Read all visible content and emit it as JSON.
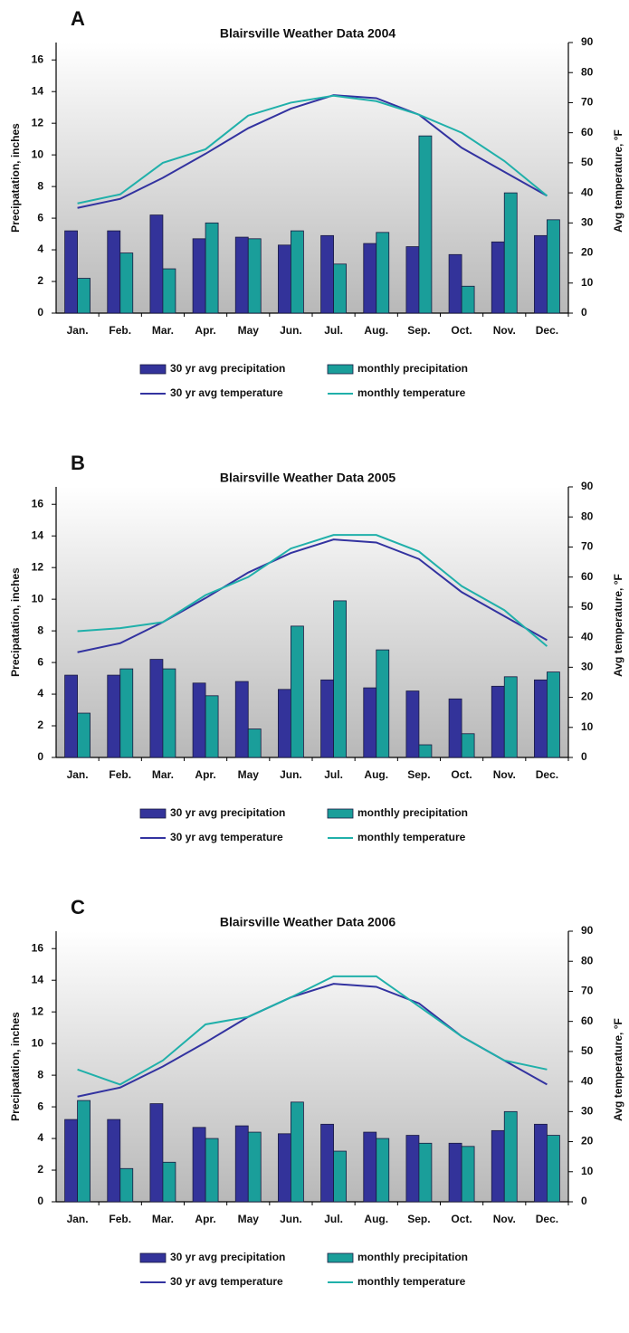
{
  "chart_data": [
    {
      "type": "bar",
      "panel_label": "A",
      "title": "Blairsville Weather Data 2004",
      "ylabel": "Precipatation, inches",
      "y2label": "Avg temperature, °F",
      "categories": [
        "Jan.",
        "Feb.",
        "Mar.",
        "Apr.",
        "May",
        "Jun.",
        "Jul.",
        "Aug.",
        "Sep.",
        "Oct.",
        "Nov.",
        "Dec."
      ],
      "ylim": [
        0,
        17.1
      ],
      "yticks": [
        0,
        2,
        4,
        6,
        8,
        10,
        12,
        14,
        16
      ],
      "y2lim": [
        0,
        90
      ],
      "y2ticks": [
        0,
        10,
        20,
        30,
        40,
        50,
        60,
        70,
        80,
        90
      ],
      "series": [
        {
          "name": "30 yr avg precipitation",
          "type": "bar",
          "color": "#33339a",
          "values": [
            5.2,
            5.2,
            6.2,
            4.7,
            4.8,
            4.3,
            4.9,
            4.4,
            4.2,
            3.7,
            4.5,
            4.9
          ]
        },
        {
          "name": "monthly precipitation",
          "type": "bar",
          "color": "#1a9e9a",
          "values": [
            2.2,
            3.8,
            2.8,
            5.7,
            4.7,
            5.2,
            3.1,
            5.1,
            11.2,
            1.7,
            7.6,
            5.9
          ]
        },
        {
          "name": "30 yr avg temperature",
          "type": "line",
          "axis": "y2",
          "color": "#3333a0",
          "values": [
            35,
            38,
            45,
            53,
            61.5,
            68,
            72.5,
            71.5,
            66,
            55,
            47,
            39
          ]
        },
        {
          "name": "monthly temperature",
          "type": "line",
          "axis": "y2",
          "color": "#20b0aa",
          "values": [
            36.5,
            39.5,
            50,
            54.5,
            65.7,
            70,
            72.3,
            70.5,
            66,
            60,
            50.6,
            39
          ]
        }
      ]
    },
    {
      "type": "bar",
      "panel_label": "B",
      "title": "Blairsville Weather Data 2005",
      "ylabel": "Precipatation, inches",
      "y2label": "Avg temperature, °F",
      "categories": [
        "Jan.",
        "Feb.",
        "Mar.",
        "Apr.",
        "May",
        "Jun.",
        "Jul.",
        "Aug.",
        "Sep.",
        "Oct.",
        "Nov.",
        "Dec."
      ],
      "ylim": [
        0,
        17.1
      ],
      "yticks": [
        0,
        2,
        4,
        6,
        8,
        10,
        12,
        14,
        16
      ],
      "y2lim": [
        0,
        90
      ],
      "y2ticks": [
        0,
        10,
        20,
        30,
        40,
        50,
        60,
        70,
        80,
        90
      ],
      "series": [
        {
          "name": "30 yr avg precipitation",
          "type": "bar",
          "color": "#33339a",
          "values": [
            5.2,
            5.2,
            6.2,
            4.7,
            4.8,
            4.3,
            4.9,
            4.4,
            4.2,
            3.7,
            4.5,
            4.9
          ]
        },
        {
          "name": "monthly precipitation",
          "type": "bar",
          "color": "#1a9e9a",
          "values": [
            2.8,
            5.6,
            5.6,
            3.9,
            1.8,
            8.3,
            9.9,
            6.8,
            0.8,
            1.5,
            5.1,
            5.4
          ]
        },
        {
          "name": "30 yr avg temperature",
          "type": "line",
          "axis": "y2",
          "color": "#3333a0",
          "values": [
            35,
            38,
            45,
            53,
            61.5,
            68,
            72.5,
            71.5,
            66,
            55,
            47,
            39
          ]
        },
        {
          "name": "monthly temperature",
          "type": "line",
          "axis": "y2",
          "color": "#20b0aa",
          "values": [
            42,
            43,
            45,
            54,
            60,
            69.5,
            74,
            74,
            68.5,
            57,
            49,
            37
          ]
        }
      ]
    },
    {
      "type": "bar",
      "panel_label": "C",
      "title": "Blairsville Weather Data 2006",
      "ylabel": "Precipatation, inches",
      "y2label": "Avg temperature, °F",
      "categories": [
        "Jan.",
        "Feb.",
        "Mar.",
        "Apr.",
        "May",
        "Jun.",
        "Jul.",
        "Aug.",
        "Sep.",
        "Oct.",
        "Nov.",
        "Dec."
      ],
      "ylim": [
        0,
        17.1
      ],
      "yticks": [
        0,
        2,
        4,
        6,
        8,
        10,
        12,
        14,
        16
      ],
      "y2lim": [
        0,
        90
      ],
      "y2ticks": [
        0,
        10,
        20,
        30,
        40,
        50,
        60,
        70,
        80,
        90
      ],
      "series": [
        {
          "name": "30 yr avg precipitation",
          "type": "bar",
          "color": "#33339a",
          "values": [
            5.2,
            5.2,
            6.2,
            4.7,
            4.8,
            4.3,
            4.9,
            4.4,
            4.2,
            3.7,
            4.5,
            4.9
          ]
        },
        {
          "name": "monthly precipitation",
          "type": "bar",
          "color": "#1a9e9a",
          "values": [
            6.4,
            2.1,
            2.5,
            4.0,
            4.4,
            6.3,
            3.2,
            4.0,
            3.7,
            3.5,
            5.7,
            4.2
          ]
        },
        {
          "name": "30 yr avg temperature",
          "type": "line",
          "axis": "y2",
          "color": "#3333a0",
          "values": [
            35,
            38,
            45,
            53,
            61.5,
            68,
            72.5,
            71.5,
            66,
            55,
            47,
            39
          ]
        },
        {
          "name": "monthly temperature",
          "type": "line",
          "axis": "y2",
          "color": "#20b0aa",
          "values": [
            44,
            39,
            47,
            59,
            61.5,
            68,
            75,
            75,
            65,
            55,
            47,
            44
          ]
        }
      ]
    }
  ]
}
